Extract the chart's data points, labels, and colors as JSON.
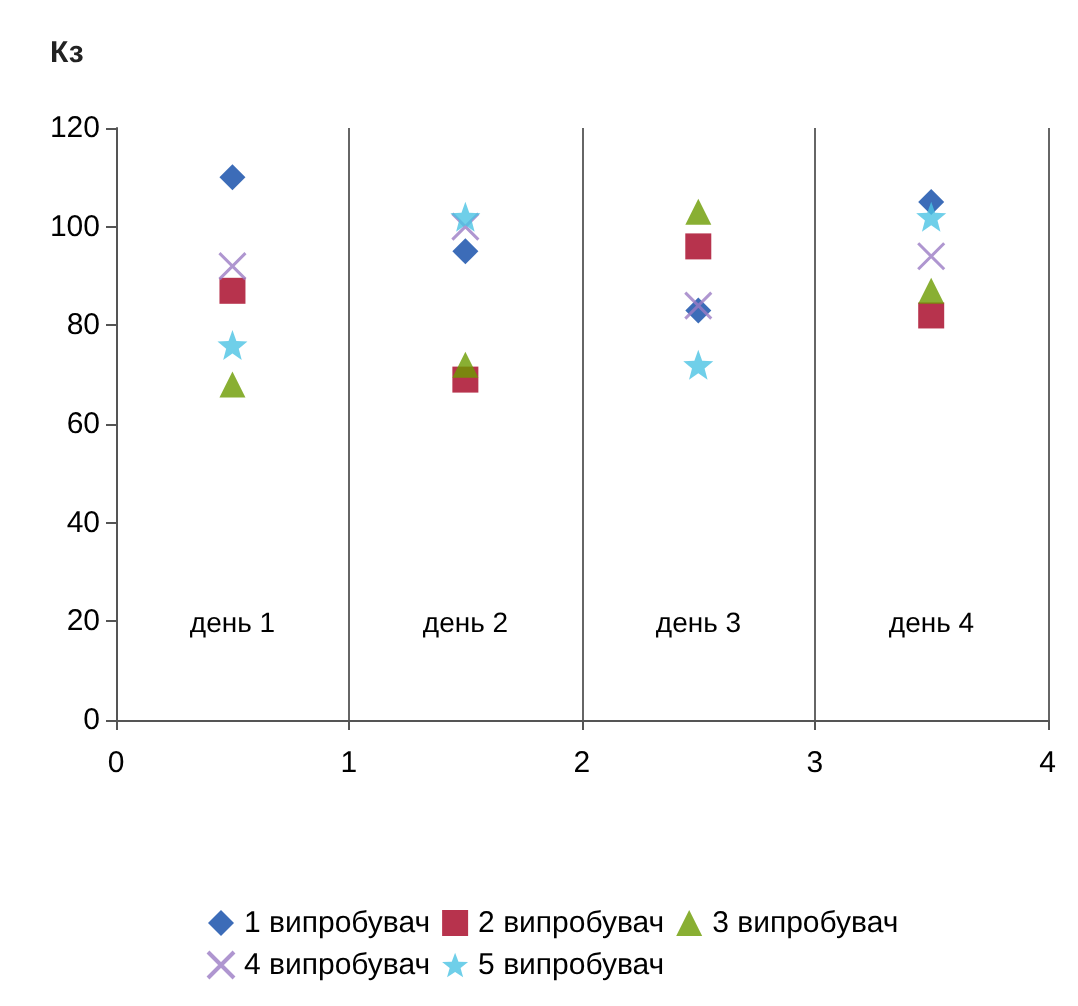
{
  "chart_data": {
    "type": "scatter",
    "ylabel": "Кз",
    "xlim": [
      0,
      4
    ],
    "xticks": [
      0,
      1,
      2,
      3,
      4
    ],
    "ylim": [
      0,
      120
    ],
    "yticks": [
      0,
      20,
      40,
      60,
      80,
      100,
      120
    ],
    "grid": "x",
    "legend": "bottom",
    "annotations": [
      "день 1",
      "день 2",
      "день 3",
      "день 4"
    ],
    "series": [
      {
        "name": "1 випробувач",
        "color": "#0b47a6",
        "marker": "diamond",
        "x": [
          0.5,
          1.5,
          2.5,
          3.5
        ],
        "values": [
          110,
          95,
          83,
          105
        ]
      },
      {
        "name": "2 випробувач",
        "color": "#a50021",
        "marker": "square",
        "x": [
          0.5,
          1.5,
          2.5,
          3.5
        ],
        "values": [
          87,
          69,
          96,
          82
        ]
      },
      {
        "name": "3 випробувач",
        "color": "#6b9b00",
        "marker": "triangle",
        "x": [
          0.5,
          1.5,
          2.5,
          3.5
        ],
        "values": [
          68,
          72,
          103,
          87
        ]
      },
      {
        "name": "4 випробувач",
        "color": "#9b7cc4",
        "marker": "cross",
        "x": [
          0.5,
          1.5,
          2.5,
          3.5
        ],
        "values": [
          92,
          100,
          84,
          94
        ]
      },
      {
        "name": "5 випробувач",
        "color": "#4bc3e3",
        "marker": "star",
        "x": [
          0.5,
          1.5,
          2.5,
          3.5
        ],
        "values": [
          76,
          102,
          72,
          102
        ]
      }
    ]
  }
}
